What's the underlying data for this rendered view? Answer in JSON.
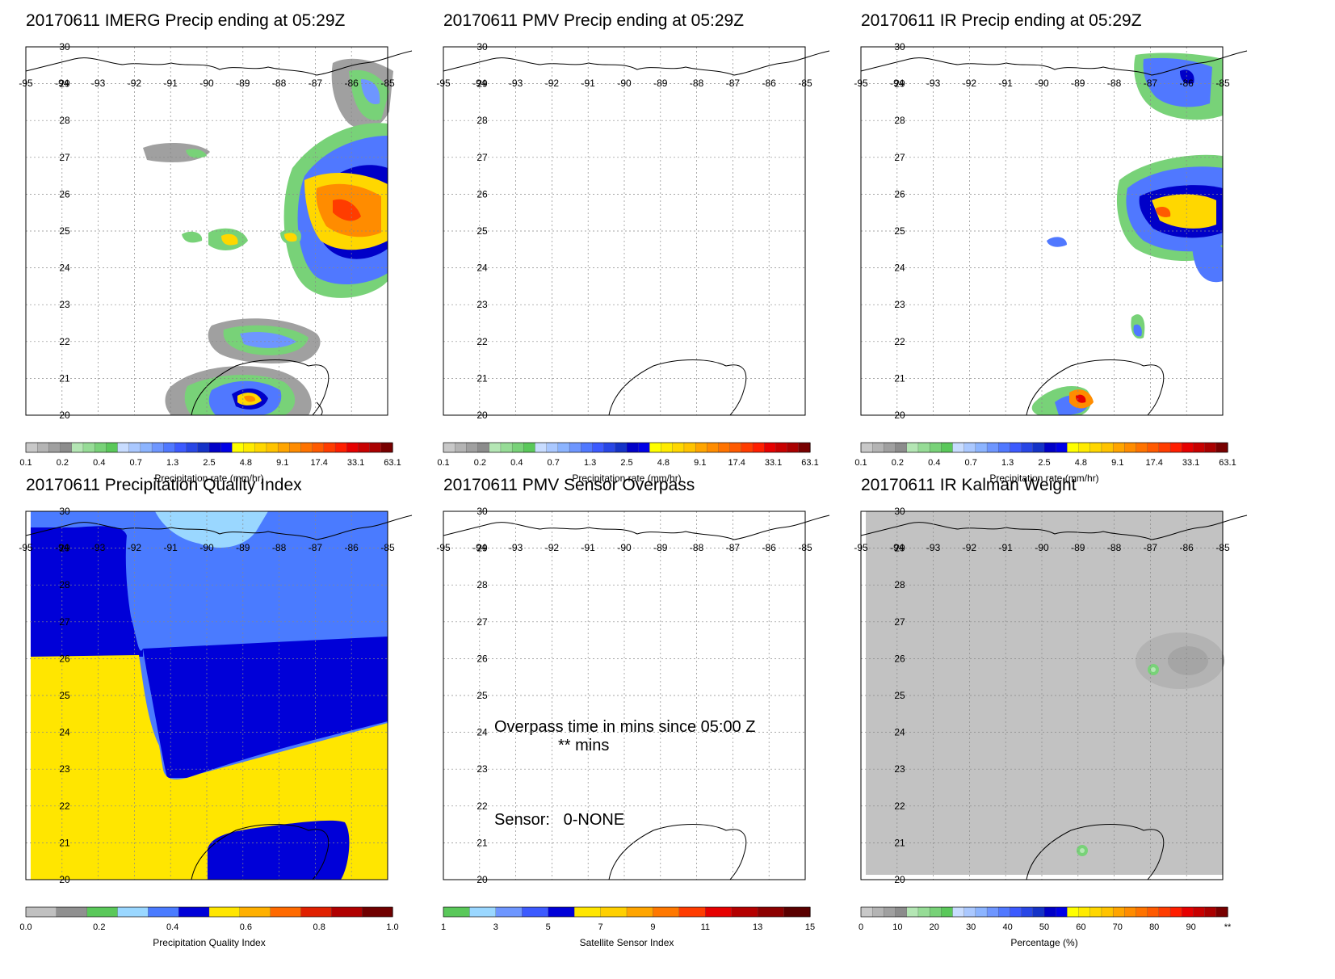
{
  "date": "20170611",
  "panels": [
    {
      "id": "imerg",
      "title": "20170611 IMERG Precip ending at 05:29Z",
      "colorbar": "precip"
    },
    {
      "id": "pmv",
      "title": "20170611 PMV Precip ending at 05:29Z",
      "colorbar": "precip"
    },
    {
      "id": "ir",
      "title": "20170611 IR Precip ending at 05:29Z",
      "colorbar": "precip"
    },
    {
      "id": "quality",
      "title": "20170611 Precipitation Quality Index",
      "colorbar": "quality"
    },
    {
      "id": "overpass",
      "title": "20170611 PMV Sensor Overpass",
      "colorbar": "sensor"
    },
    {
      "id": "kalman",
      "title": "20170611 IR Kalman Weight",
      "colorbar": "percent"
    }
  ],
  "map_axes": {
    "lon_labels": [
      "-95",
      "-94",
      "-93",
      "-92",
      "-91",
      "-90",
      "-89",
      "-88",
      "-87",
      "-86",
      "-85"
    ],
    "lat_labels": [
      "30",
      "29",
      "28",
      "27",
      "26",
      "25",
      "24",
      "23",
      "22",
      "21",
      "20"
    ],
    "lon_range": [
      -95,
      -85
    ],
    "lat_range": [
      20,
      30
    ]
  },
  "colorbars": {
    "precip": {
      "label": "Precipitation rate (mm/hr)",
      "ticks": [
        "0.1",
        "0.2",
        "0.4",
        "0.7",
        "1.3",
        "2.5",
        "4.8",
        "9.1",
        "17.4",
        "33.1",
        "63.1"
      ],
      "colors": [
        "#c8c8c8",
        "#b4b4b4",
        "#a0a0a0",
        "#8c8c8c",
        "#b4e6b4",
        "#96dc96",
        "#78d278",
        "#5ac85a",
        "#c8dcff",
        "#aac8ff",
        "#8cb4ff",
        "#6e96ff",
        "#5078ff",
        "#3c5aff",
        "#2846e6",
        "#1432c8",
        "#0000c8",
        "#0000e6",
        "#ffff00",
        "#ffeb00",
        "#ffd700",
        "#ffc300",
        "#ffa500",
        "#ff8c00",
        "#ff7300",
        "#ff5a00",
        "#ff3c00",
        "#ff1e00",
        "#e60000",
        "#c80000",
        "#aa0000",
        "#780000"
      ]
    },
    "quality": {
      "label": "Precipitation Quality Index",
      "ticks": [
        "0.0",
        "0.2",
        "0.4",
        "0.6",
        "0.8",
        "1.0"
      ],
      "colors": [
        "#c0c0c0",
        "#909090",
        "#5ac85a",
        "#9ad7ff",
        "#4a7bff",
        "#0000d8",
        "#ffe600",
        "#ffb000",
        "#ff6a00",
        "#e02000",
        "#b00000",
        "#700000"
      ]
    },
    "sensor": {
      "label": "Satellite Sensor Index",
      "ticks": [
        "1",
        "3",
        "5",
        "7",
        "9",
        "11",
        "13",
        "15"
      ],
      "colors": [
        "#5ac85a",
        "#9ad7ff",
        "#6e96ff",
        "#3c5aff",
        "#0000d8",
        "#ffe600",
        "#ffd000",
        "#ffa500",
        "#ff7800",
        "#ff3c00",
        "#e60000",
        "#b40000",
        "#8c0000",
        "#5a0000"
      ]
    },
    "percent": {
      "label": "Percentage (%)",
      "ticks": [
        "0",
        "10",
        "20",
        "30",
        "40",
        "50",
        "60",
        "70",
        "80",
        "90",
        "**"
      ],
      "colors": [
        "#c8c8c8",
        "#b4b4b4",
        "#a0a0a0",
        "#8c8c8c",
        "#b4e6b4",
        "#96dc96",
        "#78d278",
        "#5ac85a",
        "#c8dcff",
        "#aac8ff",
        "#8cb4ff",
        "#6e96ff",
        "#5078ff",
        "#3c5aff",
        "#2846e6",
        "#1432c8",
        "#0000c8",
        "#0000e6",
        "#ffff00",
        "#ffeb00",
        "#ffd700",
        "#ffc300",
        "#ffa500",
        "#ff8c00",
        "#ff7300",
        "#ff5a00",
        "#ff3c00",
        "#ff1e00",
        "#e60000",
        "#c80000",
        "#aa0000",
        "#780000"
      ]
    }
  },
  "overpass": {
    "line1": "Overpass time in mins since 05:00 Z",
    "line2": "** mins",
    "sensor": "Sensor:   0-NONE"
  }
}
